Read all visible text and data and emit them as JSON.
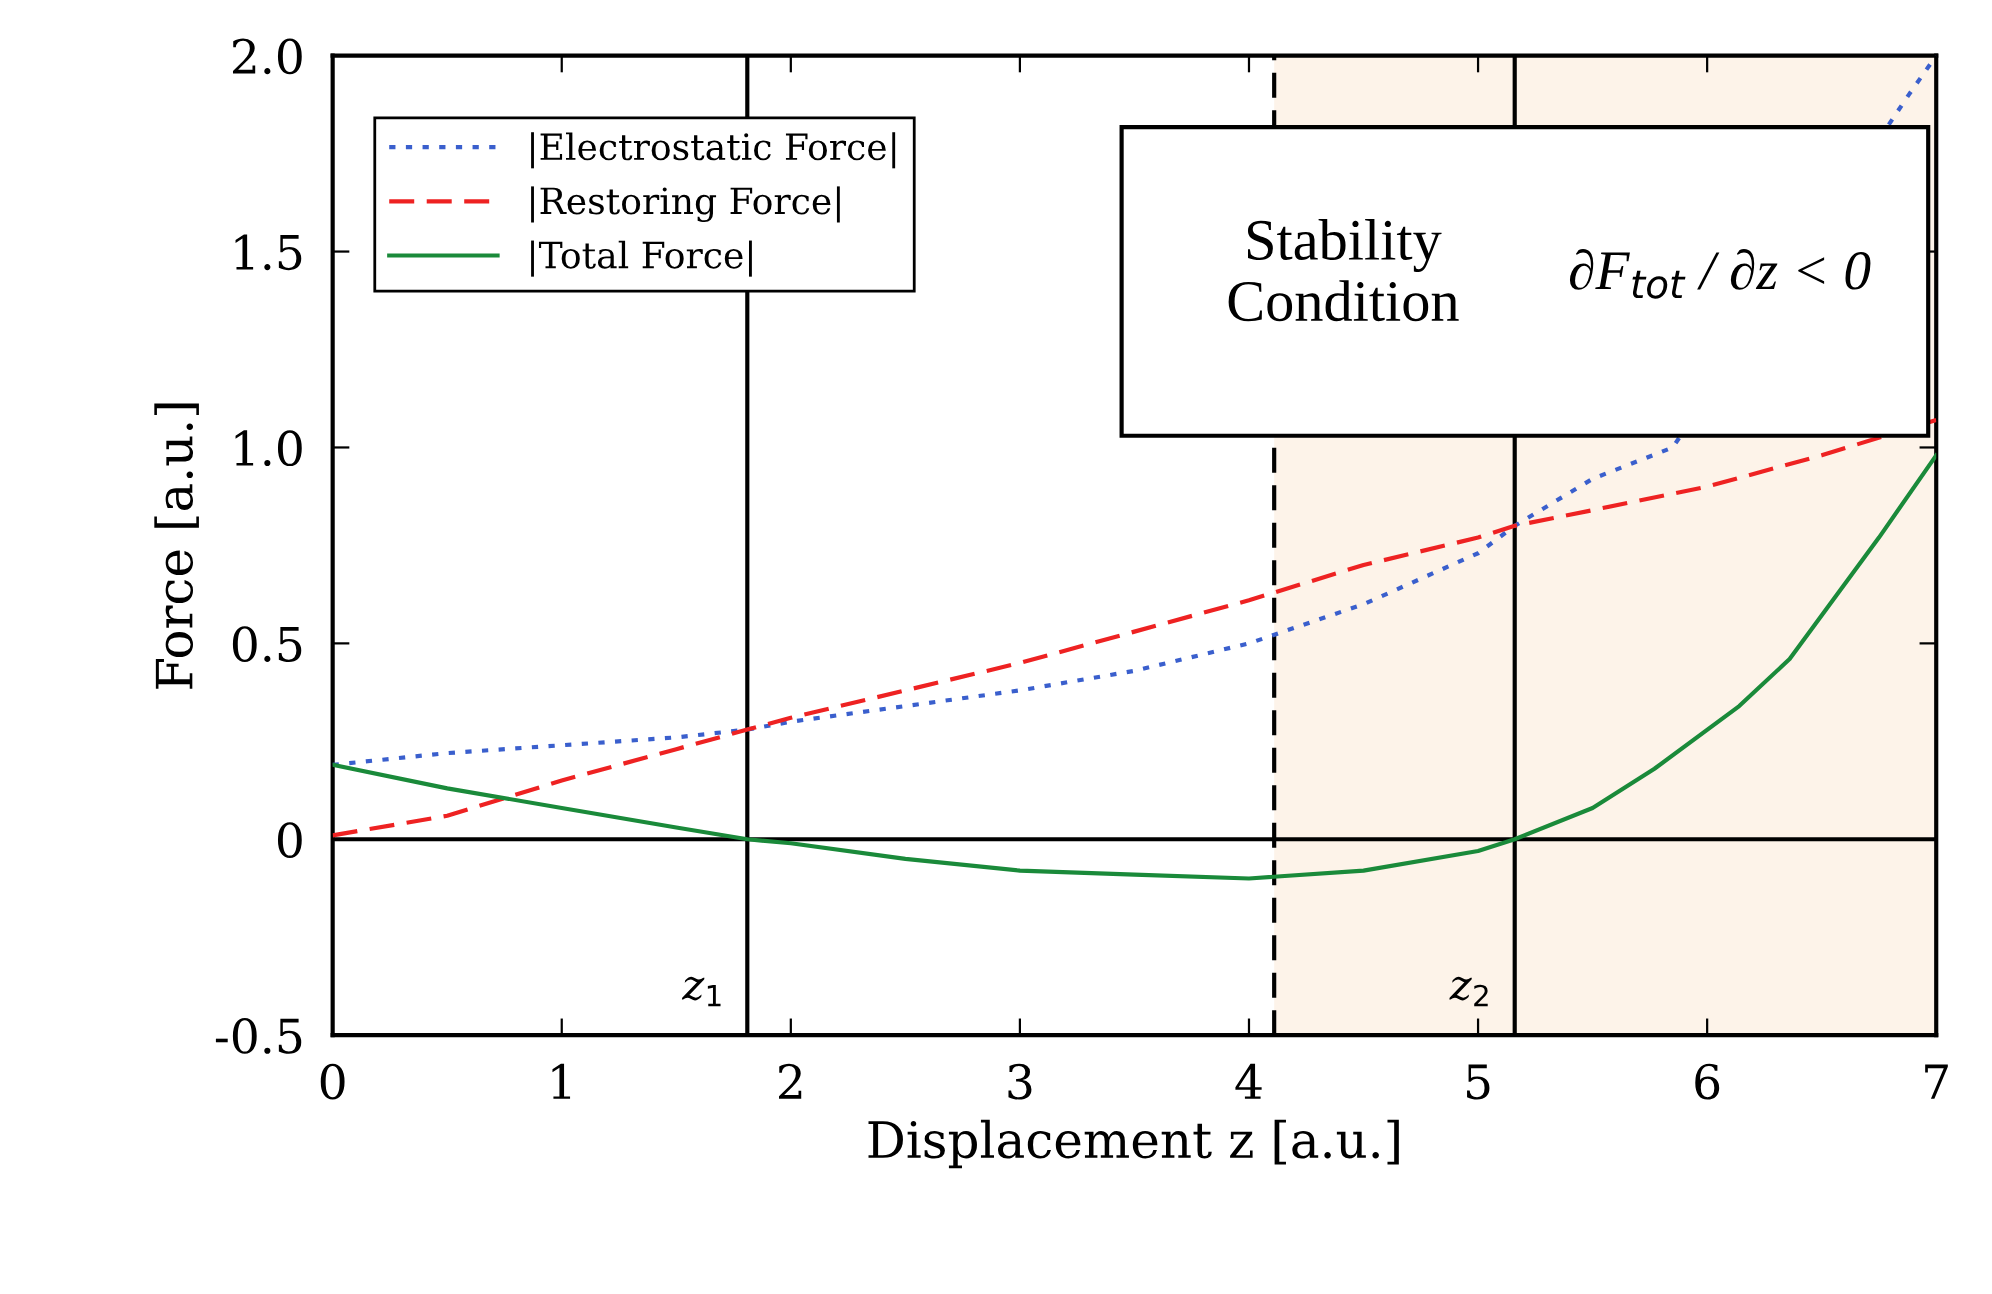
{
  "chart_data": {
    "type": "line",
    "xlabel": "Displacement z [a.u.]",
    "ylabel": "Force [a.u.]",
    "xlim": [
      0,
      7
    ],
    "ylim": [
      -0.5,
      2.0
    ],
    "xticks": [
      0,
      1,
      2,
      3,
      4,
      5,
      6,
      7
    ],
    "yticks": [
      {
        "value": -0.5,
        "label": "-0.5"
      },
      0,
      0.5,
      {
        "value": 1.0,
        "label": "1.0"
      },
      1.5,
      {
        "value": 2.0,
        "label": "2.0"
      }
    ],
    "grid": false,
    "legend": "top left",
    "series": [
      {
        "name": "|Electrostatic Force|",
        "color": "#3a5fcd",
        "line_style": "dotted",
        "x": [
          0,
          0.5,
          1,
          1.5,
          1.81,
          2,
          2.5,
          3,
          3.5,
          4,
          4.5,
          5,
          5.16,
          5.5,
          5.85,
          6.88,
          7
        ],
        "values": [
          0.19,
          0.22,
          0.24,
          0.26,
          0.28,
          0.3,
          0.34,
          0.38,
          0.43,
          0.5,
          0.6,
          0.73,
          0.8,
          0.92,
          1.0,
          1.9,
          2.0
        ]
      },
      {
        "name": "|Restoring Force|",
        "color": "#ee2222",
        "line_style": "dashed",
        "x": [
          0,
          0.5,
          1,
          1.5,
          1.81,
          2,
          2.5,
          3,
          3.5,
          4,
          4.5,
          5,
          5.16,
          5.5,
          6,
          6.5,
          7
        ],
        "values": [
          0.01,
          0.06,
          0.15,
          0.23,
          0.28,
          0.31,
          0.38,
          0.45,
          0.53,
          0.61,
          0.7,
          0.77,
          0.8,
          0.84,
          0.9,
          0.98,
          1.07
        ]
      },
      {
        "name": "|Total Force|",
        "color": "#1a8a3a",
        "line_style": "solid",
        "x": [
          0,
          0.5,
          1,
          1.5,
          1.81,
          2,
          2.5,
          3,
          3.5,
          4,
          4.5,
          5,
          5.16,
          5.5,
          5.77,
          6.14,
          6.36,
          6.75,
          7
        ],
        "values": [
          0.19,
          0.13,
          0.08,
          0.03,
          0,
          -0.01,
          -0.05,
          -0.08,
          -0.09,
          -0.1,
          -0.08,
          -0.03,
          0,
          0.08,
          0.18,
          0.34,
          0.46,
          0.77,
          0.98
        ]
      }
    ],
    "ref_lines": [
      {
        "axis": "y",
        "value": 0,
        "color": "#000000",
        "line_style": "solid"
      },
      {
        "axis": "x",
        "value": 1.81,
        "color": "#000000",
        "line_style": "solid"
      },
      {
        "axis": "x",
        "value": 4.11,
        "color": "#000000",
        "line_style": "dashed"
      },
      {
        "axis": "x",
        "value": 5.16,
        "color": "#000000",
        "line_style": "solid"
      }
    ],
    "bands": [
      {
        "axis": "x",
        "from": 4.11,
        "to": 7,
        "color": "#fdf3e9"
      }
    ],
    "annotations": [
      {
        "text": "z$_{1}$",
        "x": 1.81,
        "y": -0.38
      },
      {
        "text": "z$_{2}$",
        "x": 5.16,
        "y": -0.38
      },
      "Stability\nCondition",
      "∂F$_{tot}$ / ∂z < 0"
    ]
  }
}
